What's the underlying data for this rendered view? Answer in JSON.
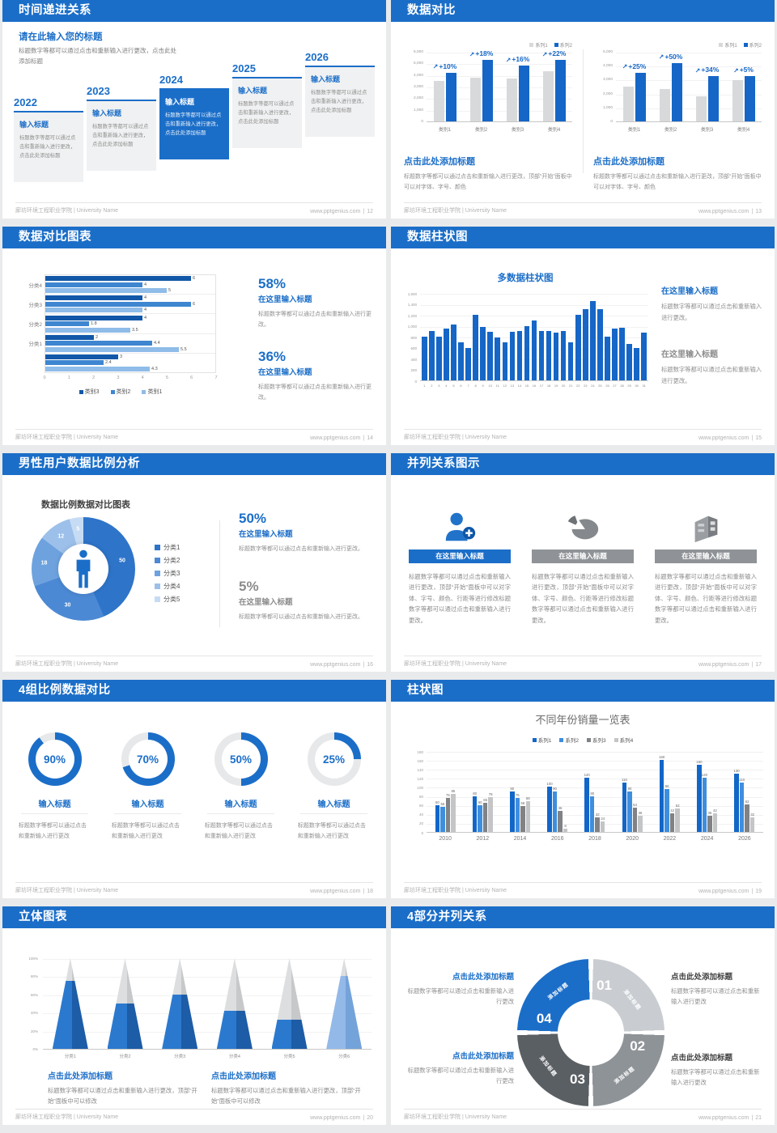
{
  "accent": "#1B6EC8",
  "icons": {
    "increase_arrow": "↗"
  },
  "footer": {
    "left": "廊坊环境工程职业学院 | University Name",
    "site": "www.pptgenius.com",
    "sep": "|"
  },
  "slides": {
    "s12": {
      "header": "时间递进关系",
      "page": "12",
      "intro_title": "请在此输入您的标题",
      "intro_body": "标题数字等都可以通过点击和重新输入进行更改，点击此处添加标题",
      "items": [
        {
          "year": "2022",
          "title": "输入标题",
          "body": "标题数字等都可以通过点击和重新输入进行更改，点击此处添加标题",
          "highlight": false
        },
        {
          "year": "2023",
          "title": "输入标题",
          "body": "标题数字等都可以通过点击和重新输入进行更改，点击此处添加标题",
          "highlight": false
        },
        {
          "year": "2024",
          "title": "输入标题",
          "body": "标题数字等都可以通过点击和重新输入进行更改，点击此处添加标题",
          "highlight": true
        },
        {
          "year": "2025",
          "title": "输入标题",
          "body": "标题数字等都可以通过点击和重新输入进行更改，点击此处添加标题",
          "highlight": false
        },
        {
          "year": "2026",
          "title": "输入标题",
          "body": "标题数字等都可以通过点击和重新输入进行更改，点击此处添加标题",
          "highlight": false
        }
      ]
    },
    "s13": {
      "header": "数据对比",
      "page": "13",
      "charts": [
        {
          "legend": [
            "系列1",
            "系列2"
          ],
          "categories": [
            "类别1",
            "类别2",
            "类别3",
            "类别4"
          ],
          "series1": [
            3500,
            3800,
            3700,
            4300
          ],
          "series2": [
            4200,
            5300,
            4800,
            5300
          ],
          "pct": [
            "+10%",
            "+18%",
            "+16%",
            "+22%"
          ],
          "ymax": 6000,
          "yticks": [
            "6,000",
            "5,000",
            "4,000",
            "3,000",
            "2,000",
            "1,000",
            "0"
          ]
        },
        {
          "legend": [
            "系列1",
            "系列2"
          ],
          "categories": [
            "类别1",
            "类别2",
            "类别3",
            "类别4"
          ],
          "series1": [
            2500,
            2300,
            1800,
            2950
          ],
          "series2": [
            3500,
            4200,
            3250,
            3250
          ],
          "pct": [
            "+25%",
            "+50%",
            "+34%",
            "+5%"
          ],
          "ymax": 5000,
          "yticks": [
            "5,000",
            "4,000",
            "3,000",
            "2,000",
            "1,000",
            "0"
          ]
        }
      ],
      "blocks": [
        {
          "title": "点击此处添加标题",
          "body": "标题数字等都可以通过点击和重新输入进行更改，顶部“开始”面板中可以对字体、字号、颜色"
        },
        {
          "title": "点击此处添加标题",
          "body": "标题数字等都可以通过点击和重新输入进行更改，顶部“开始”面板中可以对字体、字号、颜色"
        }
      ]
    },
    "s14": {
      "header": "数据对比图表",
      "page": "14",
      "chart": {
        "groups": [
          "分类4",
          "分类3",
          "分类2",
          "分类1",
          ""
        ],
        "series": [
          {
            "name": "类别3",
            "color": "#1257A8",
            "values": [
              6,
              4,
              4,
              2,
              3
            ]
          },
          {
            "name": "类别2",
            "color": "#3E86D0",
            "values": [
              4,
              6,
              1.8,
              4.4,
              2.4
            ]
          },
          {
            "name": "类别1",
            "color": "#8FBCE8",
            "values": [
              5,
              4,
              3.5,
              5.5,
              4.3
            ]
          }
        ],
        "xticks": [
          "0",
          "1",
          "2",
          "3",
          "4",
          "5",
          "6",
          "7"
        ],
        "xmax": 7
      },
      "stats": [
        {
          "pct": "58%",
          "title": "在这里输入标题",
          "body": "标题数字等都可以通过点击和重新输入进行更改。"
        },
        {
          "pct": "36%",
          "title": "在这里输入标题",
          "body": "标题数字等都可以通过点击和重新输入进行更改。"
        }
      ]
    },
    "s15": {
      "header": "数据柱状图",
      "page": "15",
      "chart": {
        "title": "多数据柱状图",
        "values": [
          800,
          900,
          800,
          950,
          1020,
          700,
          600,
          1200,
          980,
          890,
          780,
          700,
          890,
          900,
          990,
          1100,
          900,
          900,
          880,
          900,
          700,
          1200,
          1300,
          1450,
          1300,
          800,
          950,
          960,
          660,
          590,
          870
        ],
        "ymax": 1600,
        "yticks": [
          "1,600",
          "1,400",
          "1,200",
          "1,000",
          "800",
          "600",
          "400",
          "200",
          "0"
        ],
        "xticks": [
          "1",
          "2",
          "3",
          "4",
          "5",
          "6",
          "7",
          "8",
          "9",
          "10",
          "11",
          "12",
          "13",
          "14",
          "15",
          "16",
          "17",
          "18",
          "19",
          "20",
          "21",
          "22",
          "23",
          "24",
          "25",
          "26",
          "27",
          "28",
          "29",
          "30",
          "31"
        ]
      },
      "blocks": [
        {
          "title": "在这里输入标题",
          "body": "标题数字等都可以通过点击和重新输入进行更改。"
        },
        {
          "title": "在这里输入标题",
          "body": "标题数字等都可以通过点击和重新输入进行更改。"
        }
      ]
    },
    "s16": {
      "header": "男性用户数据比例分析",
      "page": "16",
      "chart": {
        "title": "数据比例数据对比图表",
        "values": [
          50,
          30,
          18,
          12,
          5
        ],
        "labels": [
          "50",
          "30",
          "18",
          "12",
          "5"
        ],
        "legend": [
          "分类1",
          "分类2",
          "分类3",
          "分类4",
          "分类5"
        ],
        "colors": [
          "#2E74C9",
          "#4C89D4",
          "#6EA2DE",
          "#9CC0EA",
          "#C6DCF4"
        ]
      },
      "stats": [
        {
          "pct": "50%",
          "title": "在这里输入标题",
          "body": "标题数字等都可以通过点击和重新输入进行更改。"
        },
        {
          "pct": "5%",
          "title": "在这里输入标题",
          "body": "标题数字等都可以通过点击和重新输入进行更改。"
        }
      ]
    },
    "s17": {
      "header": "并列关系图示",
      "page": "17",
      "columns": [
        {
          "icon": "person-plus-icon",
          "title": "在这里输入标题",
          "body": "标题数字等都可以通过点击和重新输入进行更改，顶部“开始”面板中可以对字体、字号、颜色、行距等进行修改标题数字等都可以通过点击和重新输入进行更改。"
        },
        {
          "icon": "pie-chart-icon",
          "title": "在这里输入标题",
          "body": "标题数字等都可以通过点击和重新输入进行更改，顶部“开始”面板中可以对字体、字号、颜色、行距等进行修改标题数字等都可以通过点击和重新输入进行更改。"
        },
        {
          "icon": "building-icon",
          "title": "在这里输入标题",
          "body": "标题数字等都可以通过点击和重新输入进行更改，顶部“开始”面板中可以对字体、字号、颜色、行距等进行修改标题数字等都可以通过点击和重新输入进行更改。"
        }
      ]
    },
    "s18": {
      "header": "4组比例数据对比",
      "page": "18",
      "rings": [
        {
          "pct": 90,
          "label": "90%",
          "title": "输入标题",
          "body": "标题数字等都可以通过点击和重新输入进行更改"
        },
        {
          "pct": 70,
          "label": "70%",
          "title": "输入标题",
          "body": "标题数字等都可以通过点击和重新输入进行更改"
        },
        {
          "pct": 50,
          "label": "50%",
          "title": "输入标题",
          "body": "标题数字等都可以通过点击和重新输入进行更改"
        },
        {
          "pct": 25,
          "label": "25%",
          "title": "输入标题",
          "body": "标题数字等都可以通过点击和重新输入进行更改"
        }
      ]
    },
    "s19": {
      "header": "柱状图",
      "page": "19",
      "chart": {
        "title": "不同年份销量一览表",
        "categories": [
          "2010",
          "2012",
          "2014",
          "2016",
          "2018",
          "2020",
          "2022",
          "2024",
          "2026"
        ],
        "series": [
          {
            "name": "系列1",
            "color": "#1266C8",
            "values": [
              60,
              80,
              90,
              100,
              120,
              110,
              160,
              150,
              130
            ]
          },
          {
            "name": "系列2",
            "color": "#3E8EDE",
            "values": [
              55,
              60,
              75,
              90,
              80,
              90,
              96,
              120,
              110
            ]
          },
          {
            "name": "系列3",
            "color": "#808285",
            "values": [
              75,
              65,
              58,
              46,
              32,
              54,
              42,
              36,
              62
            ]
          },
          {
            "name": "系列4",
            "color": "#C3C5C7",
            "values": [
              85,
              78,
              68,
              8,
              24,
              36,
              53,
              42,
              32
            ]
          }
        ],
        "ymax": 180,
        "yticks": [
          "180",
          "160",
          "140",
          "120",
          "100",
          "80",
          "60",
          "40",
          "20",
          "0"
        ]
      }
    },
    "s20": {
      "header": "立体图表",
      "page": "20",
      "chart": {
        "categories": [
          "分类1",
          "分类2",
          "分类3",
          "分类4",
          "分类5",
          "分类6"
        ],
        "values": [
          75,
          50,
          60,
          42,
          32,
          80
        ],
        "yticks": [
          "100%",
          "80%",
          "60%",
          "40%",
          "20%",
          "0%"
        ]
      },
      "blocks": [
        {
          "title": "点击此处添加标题",
          "body": "标题数字等都可以通过点击和重新输入进行更改，顶部“开始”面板中可以修改"
        },
        {
          "title": "点击此处添加标题",
          "body": "标题数字等都可以通过点击和重新输入进行更改，顶部“开始”面板中可以修改"
        }
      ]
    },
    "s21": {
      "header": "4部分并列关系",
      "page": "21",
      "segments": [
        {
          "num": "01",
          "label": "添加标题",
          "color": "#C9CDD2"
        },
        {
          "num": "02",
          "label": "添加标题",
          "color": "#8E9398"
        },
        {
          "num": "03",
          "label": "添加标题",
          "color": "#5A5F64"
        },
        {
          "num": "04",
          "label": "添加标题",
          "color": "#1B6EC8"
        }
      ],
      "blocks": [
        {
          "title": "点击此处添加标题",
          "body": "标题数字等都可以通过点击和重新输入进行更改"
        },
        {
          "title": "点击此处添加标题",
          "body": "标题数字等都可以通过点击和重新输入进行更改"
        },
        {
          "title": "点击此处添加标题",
          "body": "标题数字等都可以通过点击和重新输入进行更改"
        },
        {
          "title": "点击此处添加标题",
          "body": "标题数字等都可以通过点击和重新输入进行更改"
        }
      ]
    }
  },
  "chart_data": [
    {
      "type": "bar",
      "slide": "13-left",
      "categories": [
        "类别1",
        "类别2",
        "类别3",
        "类别4"
      ],
      "series": [
        {
          "name": "系列1",
          "values": [
            3500,
            3800,
            3700,
            4300
          ]
        },
        {
          "name": "系列2",
          "values": [
            4200,
            5300,
            4800,
            5300
          ]
        }
      ],
      "annotations": [
        "+10%",
        "+18%",
        "+16%",
        "+22%"
      ],
      "ylim": [
        0,
        6000
      ],
      "legend_position": "top-right"
    },
    {
      "type": "bar",
      "slide": "13-right",
      "categories": [
        "类别1",
        "类别2",
        "类别3",
        "类别4"
      ],
      "series": [
        {
          "name": "系列1",
          "values": [
            2500,
            2300,
            1800,
            2950
          ]
        },
        {
          "name": "系列2",
          "values": [
            3500,
            4200,
            3250,
            3250
          ]
        }
      ],
      "annotations": [
        "+25%",
        "+50%",
        "+34%",
        "+5%"
      ],
      "ylim": [
        0,
        5000
      ],
      "legend_position": "top-right"
    },
    {
      "type": "bar",
      "slide": "14",
      "orientation": "horizontal",
      "categories": [
        "分类4",
        "分类3",
        "分类2",
        "分类1",
        ""
      ],
      "series": [
        {
          "name": "类别3",
          "values": [
            6,
            4,
            4,
            2,
            3
          ]
        },
        {
          "name": "类别2",
          "values": [
            4,
            6,
            1.8,
            4.4,
            2.4
          ]
        },
        {
          "name": "类别1",
          "values": [
            5,
            4,
            3.5,
            5.5,
            4.3
          ]
        }
      ],
      "xlim": [
        0,
        7
      ],
      "legend_position": "bottom"
    },
    {
      "type": "bar",
      "slide": "15",
      "title": "多数据柱状图",
      "x": [
        1,
        2,
        3,
        4,
        5,
        6,
        7,
        8,
        9,
        10,
        11,
        12,
        13,
        14,
        15,
        16,
        17,
        18,
        19,
        20,
        21,
        22,
        23,
        24,
        25,
        26,
        27,
        28,
        29,
        30,
        31
      ],
      "values": [
        800,
        900,
        800,
        950,
        1020,
        700,
        600,
        1200,
        980,
        890,
        780,
        700,
        890,
        900,
        990,
        1100,
        900,
        900,
        880,
        900,
        700,
        1200,
        1300,
        1450,
        1300,
        800,
        950,
        960,
        660,
        590,
        870
      ],
      "ylim": [
        0,
        1600
      ]
    },
    {
      "type": "pie",
      "slide": "16",
      "title": "数据比例数据对比图表",
      "categories": [
        "分类1",
        "分类2",
        "分类3",
        "分类4",
        "分类5"
      ],
      "values": [
        50,
        30,
        18,
        12,
        5
      ],
      "donut": true
    },
    {
      "type": "bar",
      "slide": "19",
      "title": "不同年份销量一览表",
      "categories": [
        2010,
        2012,
        2014,
        2016,
        2018,
        2020,
        2022,
        2024,
        2026
      ],
      "series": [
        {
          "name": "系列1",
          "values": [
            60,
            80,
            90,
            100,
            120,
            110,
            160,
            150,
            130
          ]
        },
        {
          "name": "系列2",
          "values": [
            55,
            60,
            75,
            90,
            80,
            90,
            96,
            120,
            110
          ]
        },
        {
          "name": "系列3",
          "values": [
            75,
            65,
            58,
            46,
            32,
            54,
            42,
            36,
            62
          ]
        },
        {
          "name": "系列4",
          "values": [
            85,
            78,
            68,
            8,
            24,
            36,
            53,
            42,
            32
          ]
        }
      ],
      "ylim": [
        0,
        180
      ],
      "legend_position": "top"
    },
    {
      "type": "bar",
      "slide": "20",
      "style": "3d-cone",
      "categories": [
        "分类1",
        "分类2",
        "分类3",
        "分类4",
        "分类5",
        "分类6"
      ],
      "values": [
        75,
        50,
        60,
        42,
        32,
        80
      ],
      "unit": "%",
      "ylim": [
        0,
        100
      ]
    },
    {
      "type": "pie",
      "slide": "18",
      "style": "progress-rings",
      "values": [
        90,
        70,
        50,
        25
      ],
      "unit": "%"
    }
  ]
}
